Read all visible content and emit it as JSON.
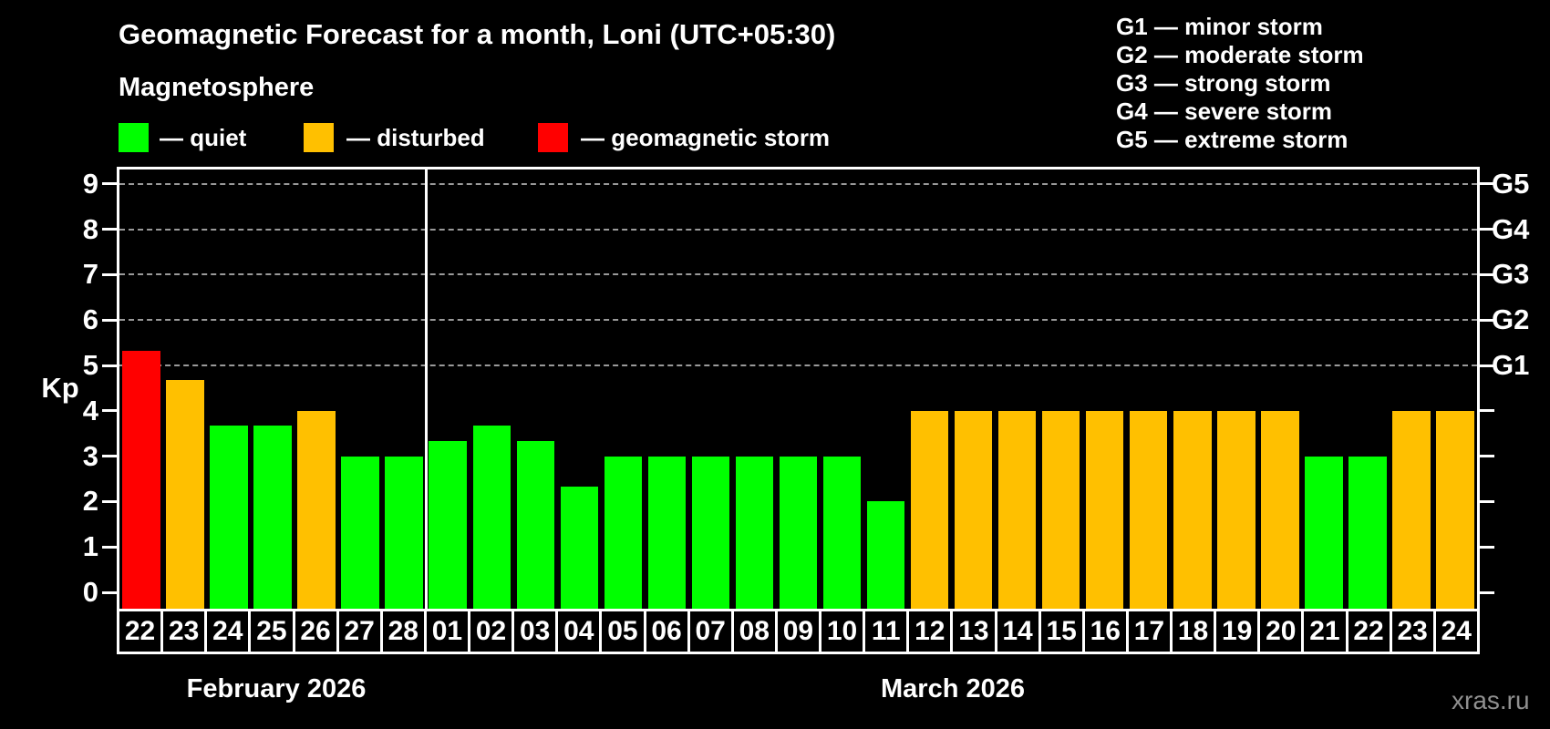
{
  "title": "Geomagnetic Forecast for a month, Loni (UTC+05:30)",
  "subtitle": "Magnetosphere",
  "legend": {
    "items": [
      {
        "key": "quiet",
        "label": "— quiet"
      },
      {
        "key": "disturbed",
        "label": "— disturbed"
      },
      {
        "key": "storm",
        "label": "— geomagnetic storm"
      }
    ]
  },
  "g_scale_legend": {
    "items": [
      {
        "label": "G1 — minor storm"
      },
      {
        "label": "G2 — moderate storm"
      },
      {
        "label": "G3 — strong storm"
      },
      {
        "label": "G4 — severe storm"
      },
      {
        "label": "G5 — extreme storm"
      }
    ]
  },
  "axis": {
    "y_label": "Kp",
    "y_ticks": [
      "0",
      "1",
      "2",
      "3",
      "4",
      "5",
      "6",
      "7",
      "8",
      "9"
    ],
    "y_range": [
      0,
      9
    ],
    "g_lines": [
      {
        "kp": 5,
        "label": "G1"
      },
      {
        "kp": 6,
        "label": "G2"
      },
      {
        "kp": 7,
        "label": "G3"
      },
      {
        "kp": 8,
        "label": "G4"
      },
      {
        "kp": 9,
        "label": "G5"
      }
    ]
  },
  "chart_data": {
    "type": "bar",
    "title": "Geomagnetic Forecast for a month, Loni (UTC+05:30)",
    "ylabel": "Kp",
    "ylim": [
      0,
      9
    ],
    "grid": "dashed horizontal at Kp 5-9",
    "months": [
      {
        "label": "February 2026",
        "days": 7
      },
      {
        "label": "March 2026",
        "days": 24
      }
    ],
    "bars": [
      {
        "day": "22",
        "month": "February 2026",
        "kp": 5.33,
        "status": "storm"
      },
      {
        "day": "23",
        "month": "February 2026",
        "kp": 4.67,
        "status": "disturbed"
      },
      {
        "day": "24",
        "month": "February 2026",
        "kp": 3.67,
        "status": "quiet"
      },
      {
        "day": "25",
        "month": "February 2026",
        "kp": 3.67,
        "status": "quiet"
      },
      {
        "day": "26",
        "month": "February 2026",
        "kp": 4,
        "status": "disturbed"
      },
      {
        "day": "27",
        "month": "February 2026",
        "kp": 3,
        "status": "quiet"
      },
      {
        "day": "28",
        "month": "February 2026",
        "kp": 3,
        "status": "quiet"
      },
      {
        "day": "01",
        "month": "March 2026",
        "kp": 3.33,
        "status": "quiet"
      },
      {
        "day": "02",
        "month": "March 2026",
        "kp": 3.67,
        "status": "quiet"
      },
      {
        "day": "03",
        "month": "March 2026",
        "kp": 3.33,
        "status": "quiet"
      },
      {
        "day": "04",
        "month": "March 2026",
        "kp": 2.33,
        "status": "quiet"
      },
      {
        "day": "05",
        "month": "March 2026",
        "kp": 3,
        "status": "quiet"
      },
      {
        "day": "06",
        "month": "March 2026",
        "kp": 3,
        "status": "quiet"
      },
      {
        "day": "07",
        "month": "March 2026",
        "kp": 3,
        "status": "quiet"
      },
      {
        "day": "08",
        "month": "March 2026",
        "kp": 3,
        "status": "quiet"
      },
      {
        "day": "09",
        "month": "March 2026",
        "kp": 3,
        "status": "quiet"
      },
      {
        "day": "10",
        "month": "March 2026",
        "kp": 3,
        "status": "quiet"
      },
      {
        "day": "11",
        "month": "March 2026",
        "kp": 2,
        "status": "quiet"
      },
      {
        "day": "12",
        "month": "March 2026",
        "kp": 4,
        "status": "disturbed"
      },
      {
        "day": "13",
        "month": "March 2026",
        "kp": 4,
        "status": "disturbed"
      },
      {
        "day": "14",
        "month": "March 2026",
        "kp": 4,
        "status": "disturbed"
      },
      {
        "day": "15",
        "month": "March 2026",
        "kp": 4,
        "status": "disturbed"
      },
      {
        "day": "16",
        "month": "March 2026",
        "kp": 4,
        "status": "disturbed"
      },
      {
        "day": "17",
        "month": "March 2026",
        "kp": 4,
        "status": "disturbed"
      },
      {
        "day": "18",
        "month": "March 2026",
        "kp": 4,
        "status": "disturbed"
      },
      {
        "day": "19",
        "month": "March 2026",
        "kp": 4,
        "status": "disturbed"
      },
      {
        "day": "20",
        "month": "March 2026",
        "kp": 4,
        "status": "disturbed"
      },
      {
        "day": "21",
        "month": "March 2026",
        "kp": 3,
        "status": "quiet"
      },
      {
        "day": "22",
        "month": "March 2026",
        "kp": 3,
        "status": "quiet"
      },
      {
        "day": "23",
        "month": "March 2026",
        "kp": 4,
        "status": "disturbed"
      },
      {
        "day": "24",
        "month": "March 2026",
        "kp": 4,
        "status": "disturbed"
      }
    ]
  },
  "watermark": "xras.ru",
  "colors": {
    "quiet": "#00ff00",
    "disturbed": "#ffc000",
    "storm": "#ff0000",
    "background": "#000000",
    "grid": "#9a9a9a",
    "axis": "#ffffff",
    "watermark": "#909090"
  }
}
